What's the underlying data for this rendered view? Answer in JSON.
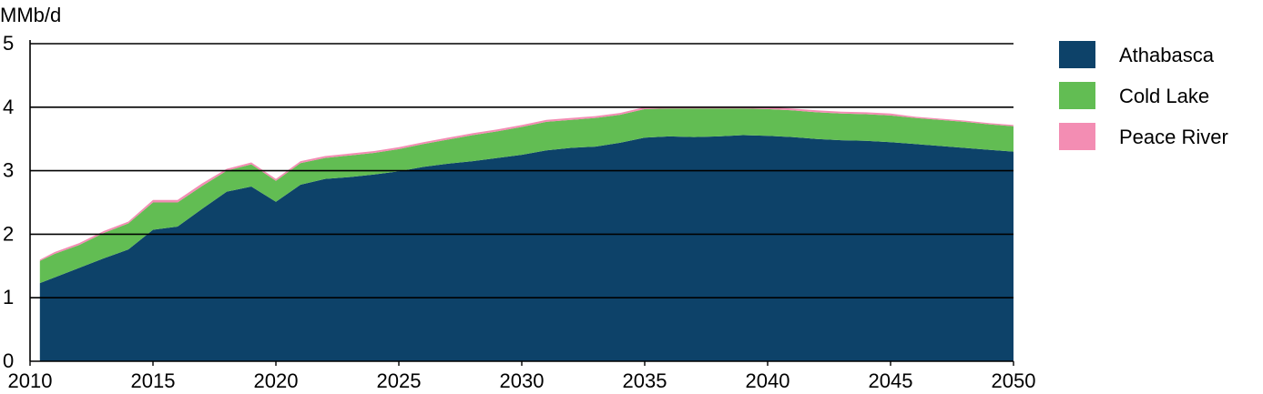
{
  "chart_data": {
    "type": "area",
    "stacked": true,
    "title": "",
    "ylabel": "MMb/d",
    "xlabel": "",
    "xlim": [
      2010,
      2050
    ],
    "ylim": [
      0,
      5
    ],
    "x_ticks": [
      "2010",
      "2015",
      "2020",
      "2025",
      "2030",
      "2035",
      "2040",
      "2045",
      "2050"
    ],
    "y_ticks": [
      "0",
      "1",
      "2",
      "3",
      "4",
      "5"
    ],
    "grid": "horizontal",
    "legend_position": "right",
    "x": [
      2010,
      2011,
      2012,
      2013,
      2014,
      2015,
      2016,
      2017,
      2018,
      2019,
      2020,
      2021,
      2022,
      2023,
      2024,
      2025,
      2026,
      2027,
      2028,
      2029,
      2030,
      2031,
      2032,
      2033,
      2034,
      2035,
      2036,
      2037,
      2038,
      2039,
      2040,
      2041,
      2042,
      2043,
      2044,
      2045,
      2046,
      2047,
      2048,
      2049,
      2050
    ],
    "series": [
      {
        "name": "Athabasca",
        "color": "#0d4269",
        "values": [
          1.23,
          1.32,
          1.47,
          1.62,
          1.76,
          2.07,
          2.12,
          2.4,
          2.67,
          2.75,
          2.51,
          2.78,
          2.87,
          2.9,
          2.94,
          2.99,
          3.06,
          3.11,
          3.15,
          3.2,
          3.25,
          3.32,
          3.36,
          3.38,
          3.44,
          3.52,
          3.54,
          3.53,
          3.54,
          3.56,
          3.55,
          3.53,
          3.5,
          3.48,
          3.47,
          3.45,
          3.42,
          3.39,
          3.36,
          3.33,
          3.3
        ]
      },
      {
        "name": "Cold Lake",
        "color": "#62bd53",
        "values": [
          0.35,
          0.37,
          0.36,
          0.4,
          0.41,
          0.43,
          0.38,
          0.36,
          0.33,
          0.35,
          0.33,
          0.34,
          0.33,
          0.34,
          0.34,
          0.35,
          0.36,
          0.38,
          0.41,
          0.42,
          0.44,
          0.45,
          0.44,
          0.45,
          0.44,
          0.45,
          0.44,
          0.45,
          0.44,
          0.42,
          0.42,
          0.42,
          0.42,
          0.42,
          0.42,
          0.42,
          0.41,
          0.41,
          0.41,
          0.4,
          0.4
        ]
      },
      {
        "name": "Peace River",
        "color": "#f38db3",
        "values": [
          0.02,
          0.03,
          0.03,
          0.03,
          0.03,
          0.04,
          0.04,
          0.04,
          0.03,
          0.03,
          0.03,
          0.03,
          0.03,
          0.03,
          0.03,
          0.03,
          0.03,
          0.03,
          0.03,
          0.03,
          0.03,
          0.03,
          0.03,
          0.03,
          0.03,
          0.03,
          0.03,
          0.03,
          0.03,
          0.03,
          0.03,
          0.03,
          0.03,
          0.03,
          0.03,
          0.03,
          0.02,
          0.02,
          0.02,
          0.02,
          0.02
        ]
      }
    ]
  }
}
